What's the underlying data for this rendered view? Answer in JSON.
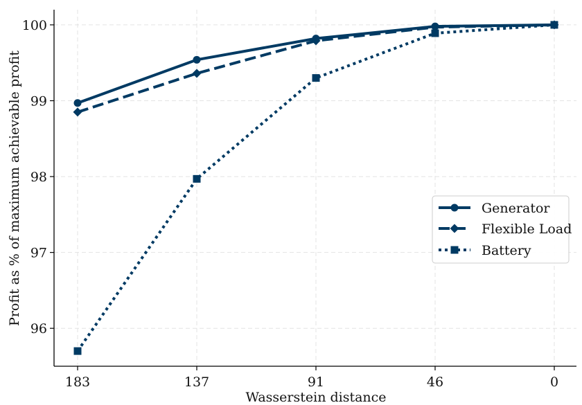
{
  "chart_data": {
    "type": "line",
    "x": [
      "183",
      "137",
      "91",
      "46",
      "0"
    ],
    "xlabel": "Wasserstein distance",
    "ylabel": "Profit as % of maximum achievable profit",
    "ylim": [
      95.5,
      100.2
    ],
    "yticks": [
      96,
      97,
      98,
      99,
      100
    ],
    "grid": true,
    "legend_position": "center-right",
    "series": [
      {
        "name": "Generator",
        "values": [
          98.97,
          99.54,
          99.82,
          99.98,
          100.0
        ],
        "marker": "circle",
        "linestyle": "solid",
        "color": "#003a63"
      },
      {
        "name": "Flexible Load",
        "values": [
          98.85,
          99.36,
          99.79,
          99.97,
          100.0
        ],
        "marker": "diamond",
        "linestyle": "dashed",
        "color": "#003a63"
      },
      {
        "name": "Battery",
        "values": [
          95.7,
          97.97,
          99.3,
          99.89,
          100.0
        ],
        "marker": "square",
        "linestyle": "dotted",
        "color": "#003a63"
      }
    ]
  }
}
